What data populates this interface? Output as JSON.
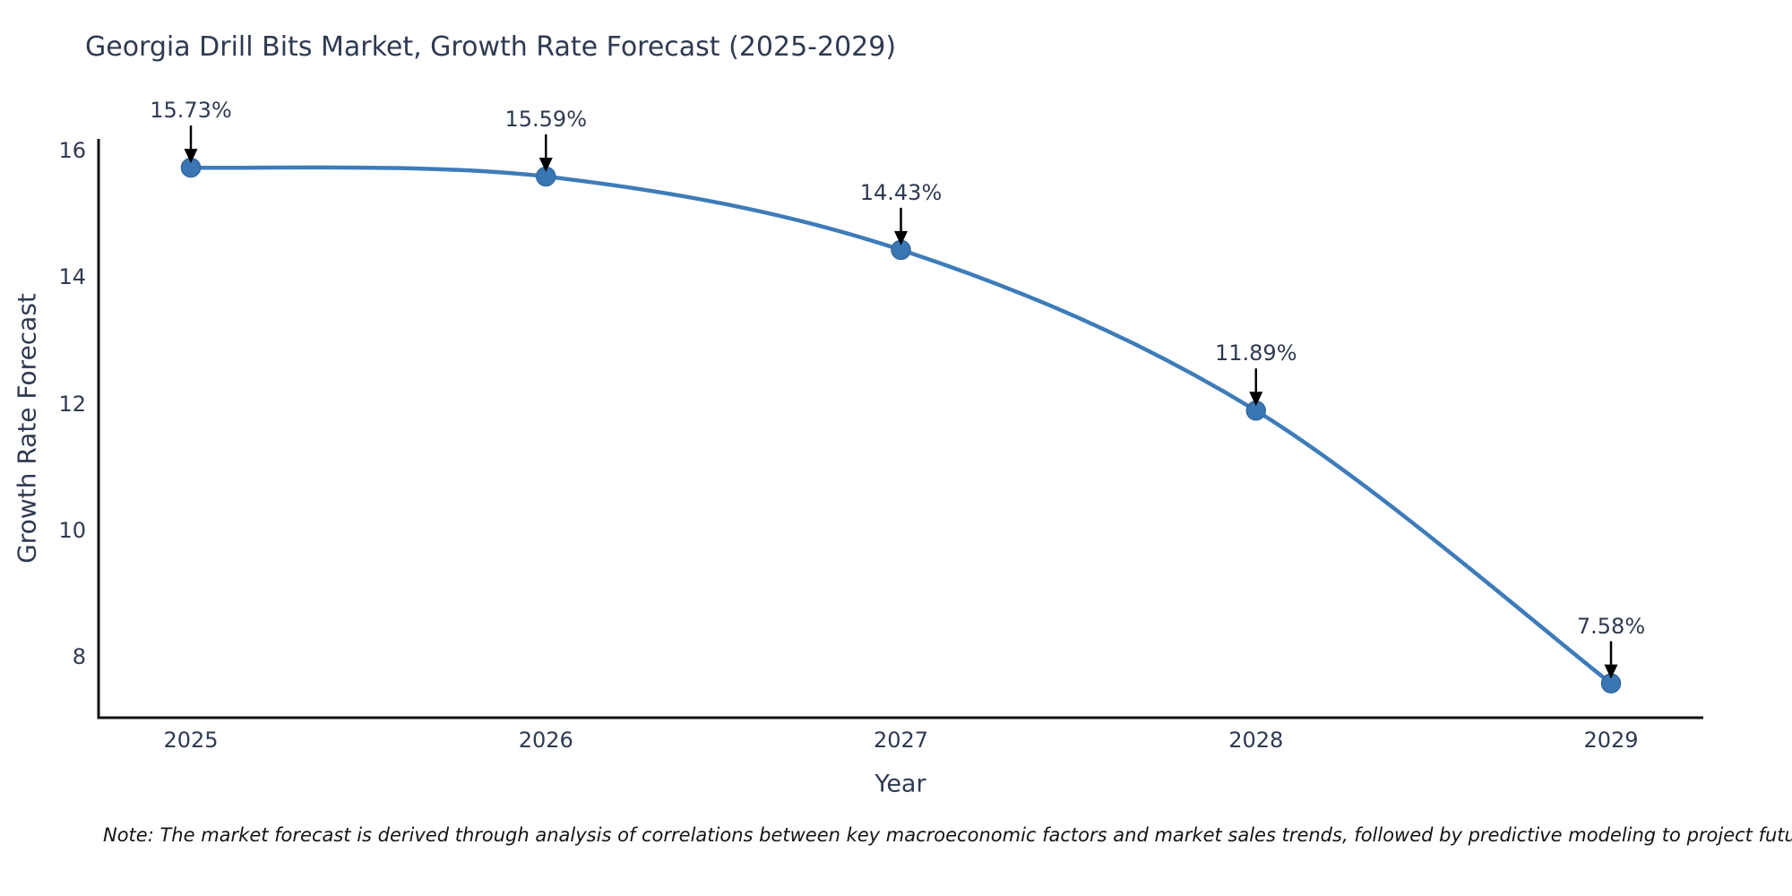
{
  "chart_data": {
    "type": "line",
    "title": "Georgia Drill Bits Market, Growth Rate Forecast (2025-2029)",
    "xlabel": "Year",
    "ylabel": "Growth Rate Forecast",
    "categories": [
      "2025",
      "2026",
      "2027",
      "2028",
      "2029"
    ],
    "values": [
      15.73,
      15.59,
      14.43,
      11.89,
      7.58
    ],
    "point_labels": [
      "15.73%",
      "15.59%",
      "14.43%",
      "11.89%",
      "7.58%"
    ],
    "y_ticks": [
      16,
      14,
      12,
      10,
      8
    ],
    "ylim": [
      7.0,
      16.15
    ],
    "grid": false,
    "legend": "none",
    "line_color": "#3e7cb9",
    "marker_color": "#3a76b2",
    "marker_edge_color": "#32689f",
    "axis_color": "#111111",
    "text_color": "#2e3a52",
    "annotation_arrow_color": "#000000",
    "note": "Note: The market forecast is derived through analysis of correlations between key macroeconomic factors and market sales trends, followed by predictive modeling to project future sales"
  }
}
